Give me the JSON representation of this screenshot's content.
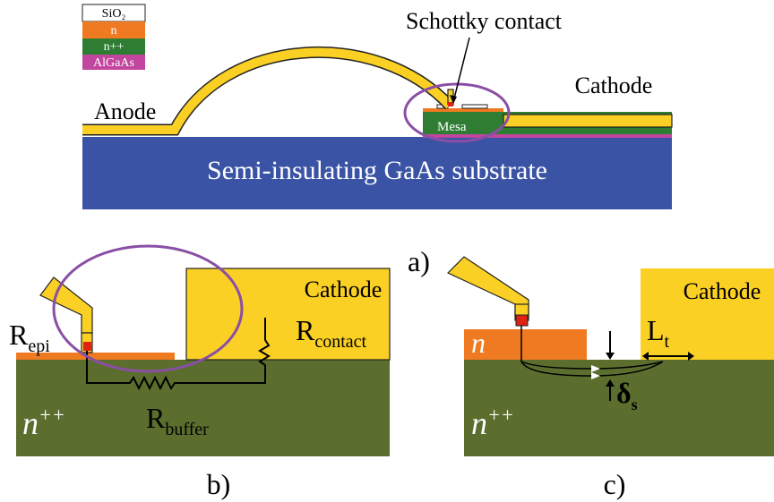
{
  "panel_a": {
    "legend": [
      "SiO₂",
      "n",
      "n++",
      "AlGaAs"
    ],
    "schottky": "Schottky contact",
    "cathode": "Cathode",
    "anode": "Anode",
    "mesa": "Mesa",
    "substrate": "Semi-insulating GaAs substrate",
    "label": "a)"
  },
  "panel_b": {
    "cathode": "Cathode",
    "r_epi": {
      "main": "R",
      "sub": "epi"
    },
    "r_contact": {
      "main": "R",
      "sub": "contact"
    },
    "r_buffer": {
      "main": "R",
      "sub": "buffer"
    },
    "npp": {
      "main": "n",
      "sup": "++"
    },
    "label": "b)"
  },
  "panel_c": {
    "cathode": "Cathode",
    "n": "n",
    "lt": {
      "main": "L",
      "sub": "t"
    },
    "delta": {
      "main": "δ",
      "sub": "s"
    },
    "npp": {
      "main": "n",
      "sup": "++"
    },
    "label": "c)"
  }
}
